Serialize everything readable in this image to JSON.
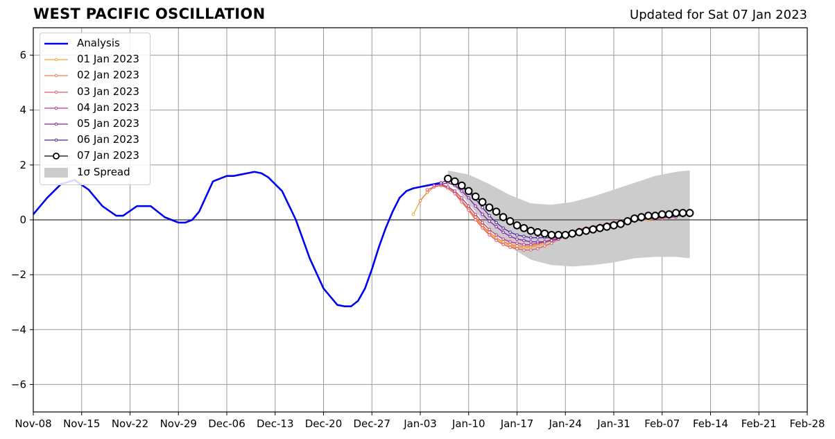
{
  "header": {
    "title": "WEST PACIFIC OSCILLATION",
    "updated": "Updated for Sat 07 Jan 2023"
  },
  "chart_data": {
    "type": "line",
    "title": "WEST PACIFIC OSCILLATION",
    "xlim": [
      "2022-11-08",
      "2023-02-28"
    ],
    "ylim": [
      -7,
      7
    ],
    "x_ticks": [
      "Nov-08",
      "Nov-15",
      "Nov-22",
      "Nov-29",
      "Dec-06",
      "Dec-13",
      "Dec-20",
      "Dec-27",
      "Jan-03",
      "Jan-10",
      "Jan-17",
      "Jan-24",
      "Jan-31",
      "Feb-07",
      "Feb-14",
      "Feb-21",
      "Feb-28"
    ],
    "y_ticks": [
      -6,
      -4,
      -2,
      0,
      2,
      4,
      6
    ],
    "grid": true,
    "legend_position": "top-left",
    "analysis": {
      "name": "Analysis",
      "color": "#0000ee",
      "x": [
        "2022-11-08",
        "2022-11-10",
        "2022-11-12",
        "2022-11-14",
        "2022-11-16",
        "2022-11-18",
        "2022-11-20",
        "2022-11-21",
        "2022-11-23",
        "2022-11-25",
        "2022-11-27",
        "2022-11-29",
        "2022-11-30",
        "2022-12-01",
        "2022-12-02",
        "2022-12-04",
        "2022-12-06",
        "2022-12-07",
        "2022-12-08",
        "2022-12-10",
        "2022-12-11",
        "2022-12-12",
        "2022-12-14",
        "2022-12-16",
        "2022-12-17",
        "2022-12-18",
        "2022-12-20",
        "2022-12-22",
        "2022-12-23",
        "2022-12-24",
        "2022-12-25",
        "2022-12-26",
        "2022-12-27",
        "2022-12-28",
        "2022-12-29",
        "2022-12-30",
        "2022-12-31",
        "2023-01-01",
        "2023-01-02",
        "2023-01-03",
        "2023-01-05",
        "2023-01-06"
      ],
      "y": [
        0.2,
        0.8,
        1.3,
        1.45,
        1.1,
        0.5,
        0.15,
        0.15,
        0.5,
        0.5,
        0.1,
        -0.1,
        -0.1,
        0.0,
        0.3,
        1.4,
        1.6,
        1.6,
        1.65,
        1.75,
        1.7,
        1.55,
        1.05,
        0.0,
        -0.7,
        -1.4,
        -2.5,
        -3.1,
        -3.15,
        -3.15,
        -2.95,
        -2.5,
        -1.8,
        -1.0,
        -0.3,
        0.3,
        0.8,
        1.05,
        1.15,
        1.2,
        1.3,
        1.35
      ]
    },
    "spread": {
      "name": "1σ Spread",
      "color": "#cccccc",
      "x": [
        "2023-01-07",
        "2023-01-10",
        "2023-01-13",
        "2023-01-16",
        "2023-01-19",
        "2023-01-22",
        "2023-01-25",
        "2023-01-28",
        "2023-01-31",
        "2023-02-03",
        "2023-02-06",
        "2023-02-09",
        "2023-02-11"
      ],
      "upper": [
        1.8,
        1.65,
        1.3,
        0.9,
        0.6,
        0.55,
        0.65,
        0.85,
        1.1,
        1.35,
        1.6,
        1.75,
        1.8
      ],
      "lower": [
        1.5,
        0.6,
        -0.3,
        -1.0,
        -1.45,
        -1.65,
        -1.7,
        -1.65,
        -1.55,
        -1.4,
        -1.35,
        -1.35,
        -1.4
      ]
    },
    "series": [
      {
        "name": "01 Jan 2023",
        "color": "#f0a830",
        "x": [
          "2023-01-02",
          "2023-01-03",
          "2023-01-04",
          "2023-01-05",
          "2023-01-06",
          "2023-01-07",
          "2023-01-08",
          "2023-01-09",
          "2023-01-10",
          "2023-01-11",
          "2023-01-12",
          "2023-01-13",
          "2023-01-14",
          "2023-01-15",
          "2023-01-16",
          "2023-01-17",
          "2023-01-18",
          "2023-01-19",
          "2023-01-20",
          "2023-01-21",
          "2023-01-22",
          "2023-01-23",
          "2023-01-24",
          "2023-01-25",
          "2023-01-26",
          "2023-01-27",
          "2023-01-28",
          "2023-01-29",
          "2023-01-30",
          "2023-01-31",
          "2023-02-01",
          "2023-02-02",
          "2023-02-03",
          "2023-02-04",
          "2023-02-05",
          "2023-02-06"
        ],
        "y": [
          0.2,
          0.7,
          1.0,
          1.2,
          1.25,
          1.2,
          1.0,
          0.7,
          0.4,
          0.05,
          -0.25,
          -0.5,
          -0.7,
          -0.85,
          -0.95,
          -1.0,
          -1.0,
          -1.0,
          -0.95,
          -0.85,
          -0.75,
          -0.65,
          -0.55,
          -0.45,
          -0.4,
          -0.35,
          -0.3,
          -0.25,
          -0.2,
          -0.15,
          -0.1,
          -0.05,
          0.0,
          0.0,
          0.0,
          0.05
        ]
      },
      {
        "name": "02 Jan 2023",
        "color": "#f08040",
        "x": [
          "2023-01-03",
          "2023-01-04",
          "2023-01-05",
          "2023-01-06",
          "2023-01-07",
          "2023-01-08",
          "2023-01-09",
          "2023-01-10",
          "2023-01-11",
          "2023-01-12",
          "2023-01-13",
          "2023-01-14",
          "2023-01-15",
          "2023-01-16",
          "2023-01-17",
          "2023-01-18",
          "2023-01-19",
          "2023-01-20",
          "2023-01-21",
          "2023-01-22",
          "2023-01-23",
          "2023-01-24",
          "2023-01-25",
          "2023-01-26",
          "2023-01-27",
          "2023-01-28",
          "2023-01-29",
          "2023-01-30",
          "2023-01-31",
          "2023-02-01",
          "2023-02-02",
          "2023-02-03",
          "2023-02-04",
          "2023-02-05",
          "2023-02-06",
          "2023-02-07"
        ],
        "y": [
          0.7,
          1.0,
          1.2,
          1.25,
          1.2,
          1.0,
          0.7,
          0.4,
          0.1,
          -0.2,
          -0.45,
          -0.65,
          -0.8,
          -0.9,
          -0.95,
          -0.95,
          -0.95,
          -0.9,
          -0.8,
          -0.7,
          -0.6,
          -0.5,
          -0.4,
          -0.35,
          -0.3,
          -0.25,
          -0.2,
          -0.15,
          -0.1,
          -0.05,
          0.0,
          0.0,
          0.0,
          0.05,
          0.05,
          0.1
        ]
      },
      {
        "name": "03 Jan 2023",
        "color": "#e05a6a",
        "x": [
          "2023-01-04",
          "2023-01-05",
          "2023-01-06",
          "2023-01-07",
          "2023-01-08",
          "2023-01-09",
          "2023-01-10",
          "2023-01-11",
          "2023-01-12",
          "2023-01-13",
          "2023-01-14",
          "2023-01-15",
          "2023-01-16",
          "2023-01-17",
          "2023-01-18",
          "2023-01-19",
          "2023-01-20",
          "2023-01-21",
          "2023-01-22",
          "2023-01-23",
          "2023-01-24",
          "2023-01-25",
          "2023-01-26",
          "2023-01-27",
          "2023-01-28",
          "2023-01-29",
          "2023-01-30",
          "2023-01-31",
          "2023-02-01",
          "2023-02-02",
          "2023-02-03",
          "2023-02-04",
          "2023-02-05",
          "2023-02-06",
          "2023-02-07",
          "2023-02-08"
        ],
        "y": [
          1.1,
          1.2,
          1.25,
          1.15,
          0.95,
          0.65,
          0.35,
          0.0,
          -0.3,
          -0.55,
          -0.75,
          -0.9,
          -1.0,
          -1.05,
          -1.1,
          -1.1,
          -1.05,
          -0.95,
          -0.85,
          -0.7,
          -0.55,
          -0.45,
          -0.35,
          -0.3,
          -0.25,
          -0.2,
          -0.15,
          -0.1,
          -0.05,
          0.0,
          0.0,
          0.05,
          0.05,
          0.05,
          0.05,
          0.1
        ]
      },
      {
        "name": "04 Jan 2023",
        "color": "#b8348a",
        "x": [
          "2023-01-05",
          "2023-01-06",
          "2023-01-07",
          "2023-01-08",
          "2023-01-09",
          "2023-01-10",
          "2023-01-11",
          "2023-01-12",
          "2023-01-13",
          "2023-01-14",
          "2023-01-15",
          "2023-01-16",
          "2023-01-17",
          "2023-01-18",
          "2023-01-19",
          "2023-01-20",
          "2023-01-21",
          "2023-01-22",
          "2023-01-23",
          "2023-01-24",
          "2023-01-25",
          "2023-01-26",
          "2023-01-27",
          "2023-01-28",
          "2023-01-29",
          "2023-01-30",
          "2023-01-31",
          "2023-02-01",
          "2023-02-02",
          "2023-02-03",
          "2023-02-04",
          "2023-02-05",
          "2023-02-06",
          "2023-02-07",
          "2023-02-08",
          "2023-02-09"
        ],
        "y": [
          1.25,
          1.3,
          1.2,
          1.05,
          0.8,
          0.5,
          0.2,
          -0.1,
          -0.35,
          -0.55,
          -0.7,
          -0.8,
          -0.85,
          -0.9,
          -0.9,
          -0.85,
          -0.8,
          -0.75,
          -0.65,
          -0.55,
          -0.45,
          -0.35,
          -0.3,
          -0.25,
          -0.2,
          -0.15,
          -0.1,
          -0.05,
          0.0,
          0.0,
          0.05,
          0.05,
          0.05,
          0.1,
          0.1,
          0.1
        ]
      },
      {
        "name": "05 Jan 2023",
        "color": "#8a1aa8",
        "x": [
          "2023-01-06",
          "2023-01-07",
          "2023-01-08",
          "2023-01-09",
          "2023-01-10",
          "2023-01-11",
          "2023-01-12",
          "2023-01-13",
          "2023-01-14",
          "2023-01-15",
          "2023-01-16",
          "2023-01-17",
          "2023-01-18",
          "2023-01-19",
          "2023-01-20",
          "2023-01-21",
          "2023-01-22",
          "2023-01-23",
          "2023-01-24",
          "2023-01-25",
          "2023-01-26",
          "2023-01-27",
          "2023-01-28",
          "2023-01-29",
          "2023-01-30",
          "2023-01-31",
          "2023-02-01",
          "2023-02-02",
          "2023-02-03",
          "2023-02-04",
          "2023-02-05",
          "2023-02-06",
          "2023-02-07",
          "2023-02-08",
          "2023-02-09",
          "2023-02-10"
        ],
        "y": [
          1.3,
          1.35,
          1.25,
          1.05,
          0.8,
          0.5,
          0.2,
          -0.05,
          -0.25,
          -0.45,
          -0.6,
          -0.7,
          -0.75,
          -0.8,
          -0.8,
          -0.8,
          -0.75,
          -0.7,
          -0.6,
          -0.5,
          -0.4,
          -0.35,
          -0.3,
          -0.25,
          -0.2,
          -0.15,
          -0.1,
          -0.05,
          0.0,
          0.0,
          0.05,
          0.05,
          0.1,
          0.1,
          0.15,
          0.15
        ]
      },
      {
        "name": "06 Jan 2023",
        "color": "#5020a0",
        "x": [
          "2023-01-06",
          "2023-01-07",
          "2023-01-08",
          "2023-01-09",
          "2023-01-10",
          "2023-01-11",
          "2023-01-12",
          "2023-01-13",
          "2023-01-14",
          "2023-01-15",
          "2023-01-16",
          "2023-01-17",
          "2023-01-18",
          "2023-01-19",
          "2023-01-20",
          "2023-01-21",
          "2023-01-22",
          "2023-01-23",
          "2023-01-24",
          "2023-01-25",
          "2023-01-26",
          "2023-01-27",
          "2023-01-28",
          "2023-01-29",
          "2023-01-30",
          "2023-01-31",
          "2023-02-01",
          "2023-02-02",
          "2023-02-03",
          "2023-02-04",
          "2023-02-05",
          "2023-02-06",
          "2023-02-07",
          "2023-02-08",
          "2023-02-09",
          "2023-02-10"
        ],
        "y": [
          1.35,
          1.45,
          1.4,
          1.2,
          1.0,
          0.75,
          0.45,
          0.15,
          -0.1,
          -0.3,
          -0.45,
          -0.55,
          -0.6,
          -0.65,
          -0.65,
          -0.65,
          -0.65,
          -0.6,
          -0.55,
          -0.5,
          -0.45,
          -0.4,
          -0.35,
          -0.3,
          -0.25,
          -0.2,
          -0.15,
          -0.1,
          -0.05,
          0.0,
          0.05,
          0.1,
          0.1,
          0.15,
          0.15,
          0.2
        ]
      },
      {
        "name": "07 Jan 2023",
        "color": "#000000",
        "marker": "open-circle",
        "x": [
          "2023-01-07",
          "2023-01-08",
          "2023-01-09",
          "2023-01-10",
          "2023-01-11",
          "2023-01-12",
          "2023-01-13",
          "2023-01-14",
          "2023-01-15",
          "2023-01-16",
          "2023-01-17",
          "2023-01-18",
          "2023-01-19",
          "2023-01-20",
          "2023-01-21",
          "2023-01-22",
          "2023-01-23",
          "2023-01-24",
          "2023-01-25",
          "2023-01-26",
          "2023-01-27",
          "2023-01-28",
          "2023-01-29",
          "2023-01-30",
          "2023-01-31",
          "2023-02-01",
          "2023-02-02",
          "2023-02-03",
          "2023-02-04",
          "2023-02-05",
          "2023-02-06",
          "2023-02-07",
          "2023-02-08",
          "2023-02-09",
          "2023-02-10",
          "2023-02-11"
        ],
        "y": [
          1.5,
          1.4,
          1.25,
          1.05,
          0.85,
          0.65,
          0.45,
          0.3,
          0.1,
          -0.05,
          -0.2,
          -0.3,
          -0.4,
          -0.45,
          -0.5,
          -0.55,
          -0.55,
          -0.55,
          -0.5,
          -0.45,
          -0.4,
          -0.35,
          -0.3,
          -0.25,
          -0.2,
          -0.15,
          -0.05,
          0.05,
          0.1,
          0.15,
          0.15,
          0.2,
          0.2,
          0.25,
          0.25,
          0.25
        ]
      }
    ]
  }
}
